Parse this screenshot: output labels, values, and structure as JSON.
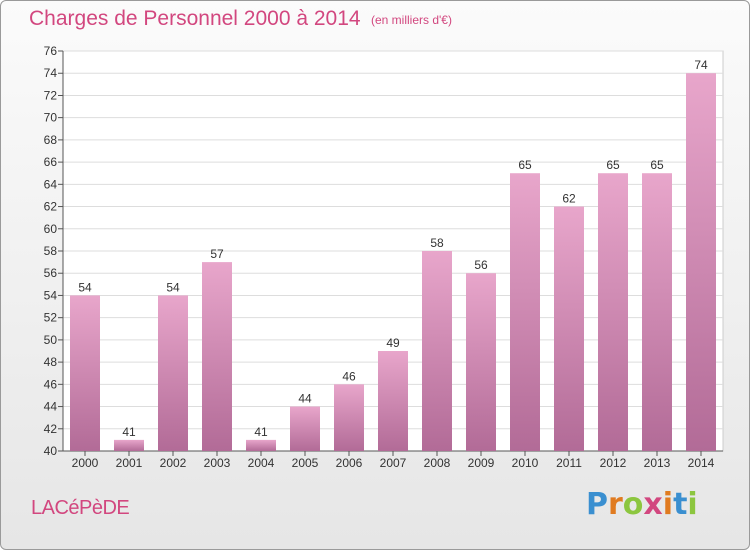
{
  "chart_data": {
    "type": "bar",
    "title": "Charges de Personnel 2000 à 2014",
    "subtitle": "(en milliers d'€)",
    "categories": [
      "2000",
      "2001",
      "2002",
      "2003",
      "2004",
      "2005",
      "2006",
      "2007",
      "2008",
      "2009",
      "2010",
      "2011",
      "2012",
      "2013",
      "2014"
    ],
    "values": [
      54,
      41,
      54,
      57,
      41,
      44,
      46,
      49,
      58,
      56,
      65,
      62,
      65,
      65,
      74
    ],
    "ylim": [
      40,
      76
    ],
    "ytick_step": 2,
    "grid": true,
    "bar_color_top": "#e8a6cb",
    "bar_color_bottom": "#b26b97"
  },
  "footer": {
    "place": "LACéPèDE",
    "logo_letters": [
      "P",
      "r",
      "o",
      "x",
      "i",
      "t",
      "i"
    ],
    "logo_colors": [
      "#3a8fd0",
      "#e07b20",
      "#8cc63f",
      "#d2477f",
      "#e07b20",
      "#3a8fd0",
      "#8cc63f"
    ]
  },
  "colors": {
    "accent": "#d2477f"
  }
}
